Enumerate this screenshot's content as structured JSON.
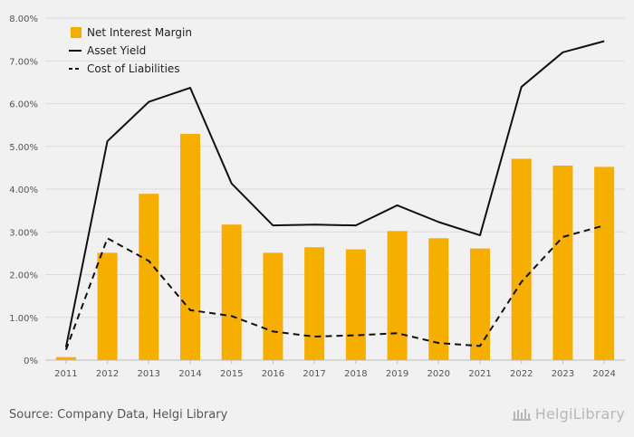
{
  "chart_data": {
    "type": "bar",
    "categories": [
      "2011",
      "2012",
      "2013",
      "2014",
      "2015",
      "2016",
      "2017",
      "2018",
      "2019",
      "2020",
      "2021",
      "2022",
      "2023",
      "2024"
    ],
    "series": [
      {
        "name": "Net Interest Margin",
        "kind": "bar",
        "values": [
          0.07,
          2.51,
          3.89,
          5.29,
          3.17,
          2.51,
          2.64,
          2.59,
          3.02,
          2.85,
          2.61,
          4.71,
          4.55,
          4.52
        ]
      },
      {
        "name": "Asset Yield",
        "kind": "line",
        "style": "solid",
        "values": [
          0.3,
          5.12,
          6.04,
          6.37,
          4.13,
          3.15,
          3.17,
          3.15,
          3.62,
          3.23,
          2.92,
          6.39,
          7.2,
          7.46
        ]
      },
      {
        "name": "Cost of Liabilities",
        "kind": "line",
        "style": "dashed",
        "values": [
          0.24,
          2.85,
          2.32,
          1.17,
          1.03,
          0.67,
          0.55,
          0.58,
          0.63,
          0.4,
          0.33,
          1.83,
          2.88,
          3.15
        ]
      }
    ],
    "y_ticks": [
      "0%",
      "1.00%",
      "2.00%",
      "3.00%",
      "4.00%",
      "5.00%",
      "6.00%",
      "7.00%",
      "8.00%"
    ],
    "ylim": [
      0,
      8
    ],
    "grid": true,
    "legend_position": "top-left",
    "colors": {
      "bar": "#f6ae00",
      "asset_yield": "#111111",
      "cost_of_liabilities": "#111111",
      "grid": "#dcdcdc",
      "background": "#f1f1f1"
    }
  },
  "footer": {
    "source": "Source: Company Data, Helgi Library",
    "brand": "HelgiLibrary"
  }
}
